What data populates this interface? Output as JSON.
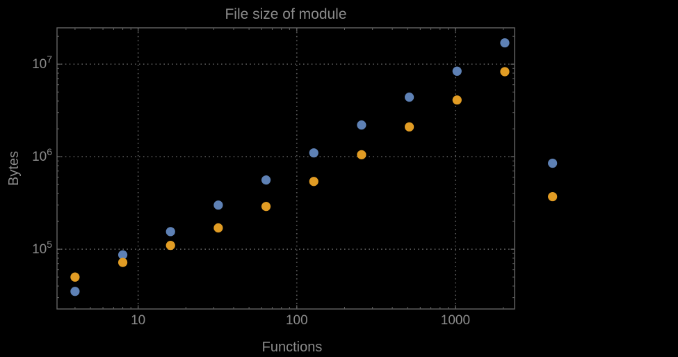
{
  "chart": {
    "title": "File size of module",
    "xlabel": "Functions",
    "ylabel": "Bytes"
  },
  "chart_data": {
    "type": "scatter",
    "title": "File size of module",
    "xlabel": "Functions",
    "ylabel": "Bytes",
    "x_scale": "log10",
    "y_scale": "log10",
    "xlim": [
      3.08,
      2360
    ],
    "ylim": [
      22600,
      24700000
    ],
    "x_ticks": [
      10,
      100,
      1000
    ],
    "x_tick_labels": [
      "10",
      "100",
      "1000"
    ],
    "y_ticks": [
      100000,
      1000000,
      10000000
    ],
    "y_tick_exponents": [
      5,
      6,
      7
    ],
    "grid": {
      "x": [
        10,
        100,
        1000
      ],
      "y": [
        100000,
        1000000,
        10000000
      ],
      "style": "dotted"
    },
    "legend": null,
    "frame": true,
    "plot_range_clipping": false,
    "x": [
      4,
      8,
      16,
      32,
      64,
      128,
      256,
      512,
      1024,
      2048,
      4096
    ],
    "series": [
      {
        "name": "series-blue",
        "color": "#5e81b5",
        "values": [
          35000,
          87000,
          155000,
          300000,
          560000,
          1100000,
          2200000,
          4400000,
          8400000,
          17000000,
          850000
        ]
      },
      {
        "name": "series-orange",
        "color": "#e19c24",
        "values": [
          50000,
          72000,
          110000,
          170000,
          290000,
          540000,
          1050000,
          2100000,
          4100000,
          8300000,
          370000
        ]
      }
    ],
    "colors": {
      "background": "#000000",
      "frame": "#646464",
      "grid": "#585858",
      "text": "#8b8b8b"
    }
  }
}
